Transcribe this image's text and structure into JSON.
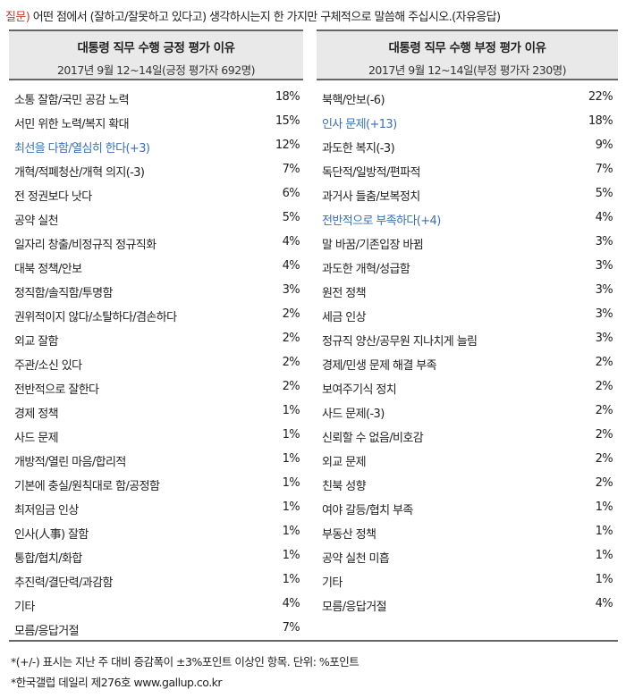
{
  "question": {
    "label": "질문)",
    "text": "어떤 점에서 (잘하고/잘못하고 있다고) 생각하시는지 한 가지만 구체적으로 말씀해 주십시오.(자유응답)"
  },
  "positive": {
    "title": "대통령 직무 수행 긍정 평가 이유",
    "subtitle": "2017년 9월 12~14일(긍정 평가자 692명)",
    "rows": [
      {
        "label": "소통 잘함/국민 공감 노력",
        "value": "18%"
      },
      {
        "label": "서민 위한 노력/복지 확대",
        "value": "15%"
      },
      {
        "label": "최선을 다함/열심히 한다(+3)",
        "value": "12%",
        "highlight": true
      },
      {
        "label": "개혁/적폐청산/개혁 의지(-3)",
        "value": "7%"
      },
      {
        "label": "전 정권보다 낫다",
        "value": "6%"
      },
      {
        "label": "공약 실천",
        "value": "5%"
      },
      {
        "label": "일자리 창출/비정규직 정규직화",
        "value": "4%"
      },
      {
        "label": "대북 정책/안보",
        "value": "4%"
      },
      {
        "label": "정직함/솔직함/투명함",
        "value": "3%"
      },
      {
        "label": "권위적이지 않다/소탈하다/겸손하다",
        "value": "2%"
      },
      {
        "label": "외교 잘함",
        "value": "2%"
      },
      {
        "label": "주관/소신 있다",
        "value": "2%"
      },
      {
        "label": "전반적으로 잘한다",
        "value": "2%"
      },
      {
        "label": "경제 정책",
        "value": "1%"
      },
      {
        "label": "사드 문제",
        "value": "1%"
      },
      {
        "label": "개방적/열린 마음/합리적",
        "value": "1%"
      },
      {
        "label": "기본에 충실/원칙대로 함/공정함",
        "value": "1%"
      },
      {
        "label": "최저임금 인상",
        "value": "1%"
      },
      {
        "label": "인사(人事) 잘함",
        "value": "1%"
      },
      {
        "label": "통합/협치/화합",
        "value": "1%"
      },
      {
        "label": "추진력/결단력/과감함",
        "value": "1%"
      },
      {
        "label": "기타",
        "value": "4%"
      },
      {
        "label": "모름/응답거절",
        "value": "7%"
      }
    ]
  },
  "negative": {
    "title": "대통령 직무 수행 부정 평가 이유",
    "subtitle": "2017년 9월 12~14일(부정 평가자 230명)",
    "rows": [
      {
        "label": "북핵/안보(-6)",
        "value": "22%"
      },
      {
        "label": "인사 문제(+13)",
        "value": "18%",
        "highlight": true
      },
      {
        "label": "과도한 복지(-3)",
        "value": "9%"
      },
      {
        "label": "독단적/일방적/편파적",
        "value": "7%"
      },
      {
        "label": "과거사 들춤/보복정치",
        "value": "5%"
      },
      {
        "label": "전반적으로 부족하다(+4)",
        "value": "4%",
        "highlight": true
      },
      {
        "label": "말 바꿈/기존입장 바뀜",
        "value": "3%"
      },
      {
        "label": "과도한 개혁/성급함",
        "value": "3%"
      },
      {
        "label": "원전 정책",
        "value": "3%"
      },
      {
        "label": "세금 인상",
        "value": "3%"
      },
      {
        "label": "정규직 양산/공무원 지나치게 늘림",
        "value": "3%"
      },
      {
        "label": "경제/민생 문제 해결 부족",
        "value": "2%"
      },
      {
        "label": "보여주기식 정치",
        "value": "2%"
      },
      {
        "label": "사드 문제(-3)",
        "value": "2%"
      },
      {
        "label": "신뢰할 수 없음/비호감",
        "value": "2%"
      },
      {
        "label": "외교 문제",
        "value": "2%"
      },
      {
        "label": "친북 성향",
        "value": "2%"
      },
      {
        "label": "여야 갈등/협치 부족",
        "value": "1%"
      },
      {
        "label": "부동산 정책",
        "value": "1%"
      },
      {
        "label": "공약 실천 미흡",
        "value": "1%"
      },
      {
        "label": "기타",
        "value": "1%"
      },
      {
        "label": "모름/응답거절",
        "value": "4%"
      }
    ]
  },
  "footnotes": {
    "note1": "*(+/-) 표시는 지난 주 대비 증감폭이 ±3%포인트 이상인 항목. 단위: %포인트",
    "note2": "*한국갤럽 데일리 제276호 www.gallup.co.kr"
  },
  "colors": {
    "question_label": "#c0392b",
    "highlight_text": "#3a6fb0",
    "header_bg": "#e9e9e9",
    "rule": "#666666"
  }
}
